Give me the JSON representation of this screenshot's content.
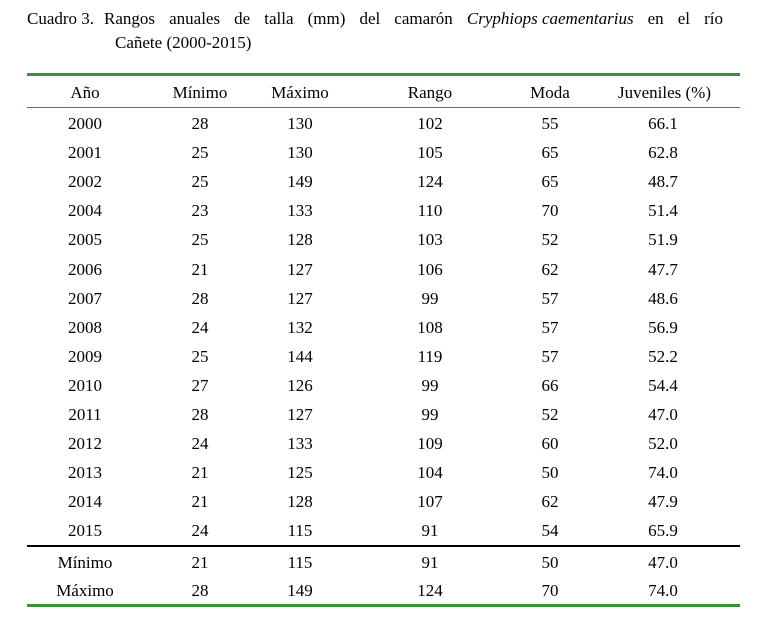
{
  "caption": {
    "label": "Cuadro 3.",
    "words": [
      "Rangos",
      "anuales",
      "de",
      "talla",
      "(mm)",
      "del",
      "camarón"
    ],
    "species": "Cryphiops caementarius",
    "tail_words": [
      "en",
      "el",
      "río"
    ],
    "line2": "Cañete (2000-2015)"
  },
  "table": {
    "headers": [
      "Año",
      "Mínimo",
      "Máximo",
      "Rango",
      "Moda",
      "Juveniles (%)"
    ],
    "rows": [
      [
        "2000",
        "28",
        "130",
        "102",
        "55",
        "66.1"
      ],
      [
        "2001",
        "25",
        "130",
        "105",
        "65",
        "62.8"
      ],
      [
        "2002",
        "25",
        "149",
        "124",
        "65",
        "48.7"
      ],
      [
        "2004",
        "23",
        "133",
        "110",
        "70",
        "51.4"
      ],
      [
        "2005",
        "25",
        "128",
        "103",
        "52",
        "51.9"
      ],
      [
        "2006",
        "21",
        "127",
        "106",
        "62",
        "47.7"
      ],
      [
        "2007",
        "28",
        "127",
        "99",
        "57",
        "48.6"
      ],
      [
        "2008",
        "24",
        "132",
        "108",
        "57",
        "56.9"
      ],
      [
        "2009",
        "25",
        "144",
        "119",
        "57",
        "52.2"
      ],
      [
        "2010",
        "27",
        "126",
        "99",
        "66",
        "54.4"
      ],
      [
        "2011",
        "28",
        "127",
        "99",
        "52",
        "47.0"
      ],
      [
        "2012",
        "24",
        "133",
        "109",
        "60",
        "52.0"
      ],
      [
        "2013",
        "21",
        "125",
        "104",
        "50",
        "74.0"
      ],
      [
        "2014",
        "21",
        "128",
        "107",
        "62",
        "47.9"
      ],
      [
        "2015",
        "24",
        "115",
        "91",
        "54",
        "65.9"
      ]
    ],
    "summary": [
      [
        "Mínimo",
        "21",
        "115",
        "91",
        "50",
        "47.0"
      ],
      [
        "Máximo",
        "28",
        "149",
        "124",
        "70",
        "74.0"
      ]
    ]
  },
  "colors": {
    "rule_green": "#3a8f3a",
    "rule_black": "#000000",
    "text": "#000000"
  }
}
